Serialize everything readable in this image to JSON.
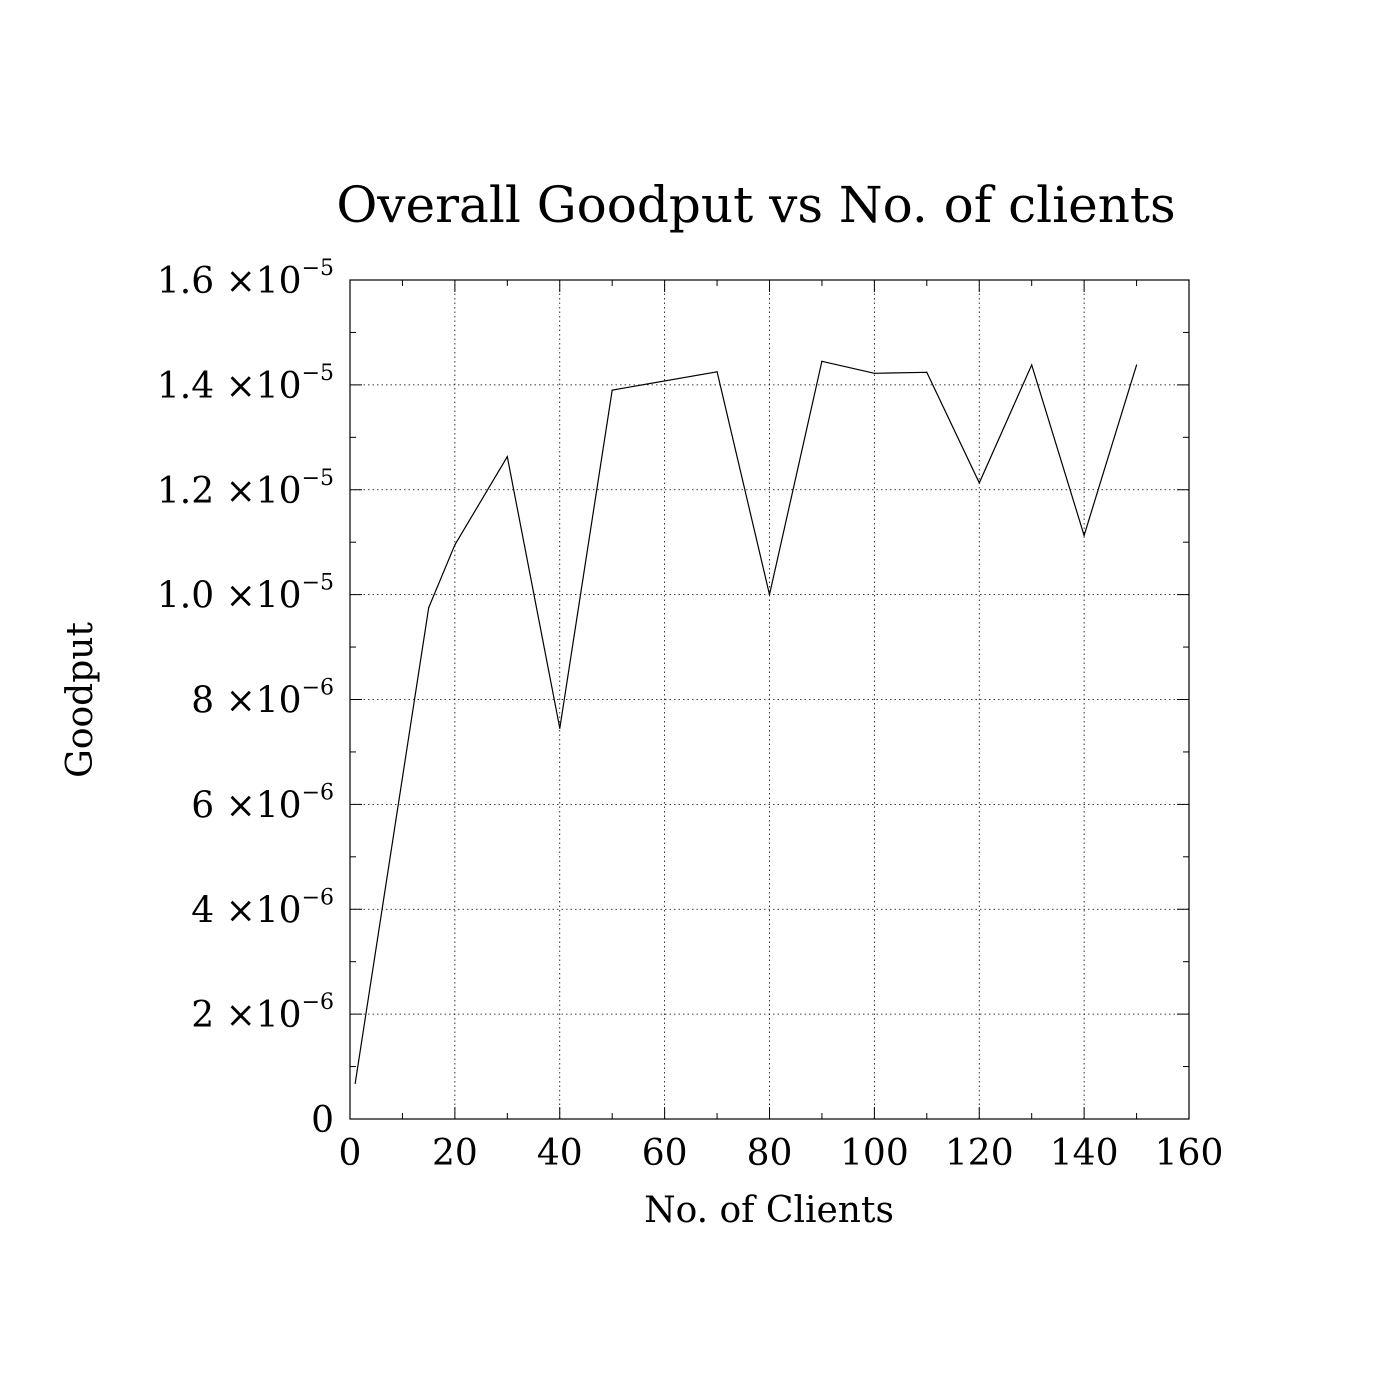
{
  "chart_data": {
    "type": "line",
    "title": "Overall Goodput vs No. of clients",
    "xlabel": "No. of Clients",
    "ylabel": "Goodput",
    "xlim": [
      0,
      160
    ],
    "ylim": [
      0,
      1.6e-05
    ],
    "grid": true,
    "x_ticks": [
      {
        "value": 0,
        "label": "0"
      },
      {
        "value": 20,
        "label": "20"
      },
      {
        "value": 40,
        "label": "40"
      },
      {
        "value": 60,
        "label": "60"
      },
      {
        "value": 80,
        "label": "80"
      },
      {
        "value": 100,
        "label": "100"
      },
      {
        "value": 120,
        "label": "120"
      },
      {
        "value": 140,
        "label": "140"
      },
      {
        "value": 160,
        "label": "160"
      }
    ],
    "y_ticks": [
      {
        "value": 0,
        "mantissa": "0",
        "exponent": ""
      },
      {
        "value": 2e-06,
        "mantissa": "2",
        "exponent": "−6"
      },
      {
        "value": 4e-06,
        "mantissa": "4",
        "exponent": "−6"
      },
      {
        "value": 6e-06,
        "mantissa": "6",
        "exponent": "−6"
      },
      {
        "value": 8e-06,
        "mantissa": "8",
        "exponent": "−6"
      },
      {
        "value": 1e-05,
        "mantissa": "1.0",
        "exponent": "−5"
      },
      {
        "value": 1.2e-05,
        "mantissa": "1.2",
        "exponent": "−5"
      },
      {
        "value": 1.4e-05,
        "mantissa": "1.4",
        "exponent": "−5"
      },
      {
        "value": 1.6e-05,
        "mantissa": "1.6",
        "exponent": "−5"
      }
    ],
    "times_symbol": "×10",
    "series": [
      {
        "color": "#000000",
        "x": [
          1,
          15,
          20,
          30,
          40,
          50,
          70,
          80,
          90,
          100,
          110,
          120,
          130,
          140,
          150
        ],
        "values": [
          6.8e-07,
          9.75e-06,
          1.095e-05,
          1.263e-05,
          7.45e-06,
          1.39e-05,
          1.425e-05,
          1e-05,
          1.445e-05,
          1.422e-05,
          1.424e-05,
          1.213e-05,
          1.438e-05,
          1.113e-05,
          1.438e-05
        ]
      }
    ]
  }
}
